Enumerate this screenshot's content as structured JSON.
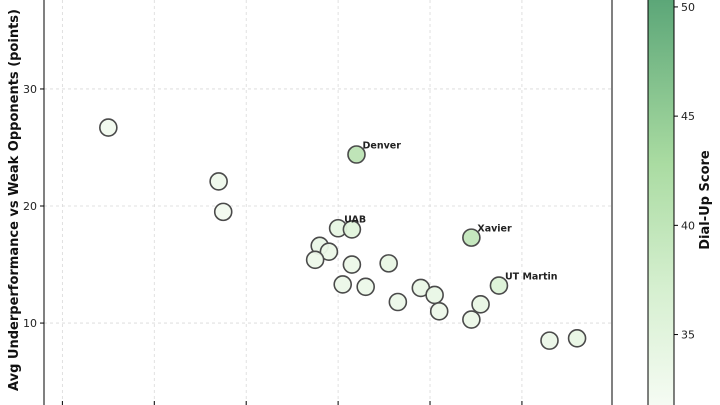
{
  "chart_data": {
    "type": "scatter",
    "title": "",
    "xlabel": "",
    "ylabel": "Avg Underperformance vs Weak Opponents (points)",
    "ylim": [
      3.0,
      37.6
    ],
    "yticks": [
      10,
      20,
      30
    ],
    "grid": true,
    "colorbar": {
      "label": "Dial-Up Score",
      "range": [
        31.5,
        50.5
      ],
      "ticks": [
        35,
        40,
        45,
        50
      ],
      "color_low": "#f7fcf5",
      "color_high": "#5aa577"
    },
    "points": [
      {
        "x": 0.7,
        "y": 26.7,
        "score": 32.5,
        "label": ""
      },
      {
        "x": 1.9,
        "y": 22.1,
        "score": 32.8,
        "label": ""
      },
      {
        "x": 1.95,
        "y": 19.5,
        "score": 32.4,
        "label": ""
      },
      {
        "x": 3.4,
        "y": 24.4,
        "score": 40.5,
        "label": "Denver"
      },
      {
        "x": 3.2,
        "y": 18.1,
        "score": 34.2,
        "label": "UAB"
      },
      {
        "x": 3.35,
        "y": 18.0,
        "score": 35.2,
        "label": ""
      },
      {
        "x": 3.0,
        "y": 16.6,
        "score": 33.6,
        "label": ""
      },
      {
        "x": 3.1,
        "y": 16.1,
        "score": 33.4,
        "label": ""
      },
      {
        "x": 2.95,
        "y": 15.4,
        "score": 33.1,
        "label": ""
      },
      {
        "x": 3.35,
        "y": 15.0,
        "score": 33.4,
        "label": ""
      },
      {
        "x": 3.75,
        "y": 15.1,
        "score": 34.0,
        "label": ""
      },
      {
        "x": 4.65,
        "y": 17.3,
        "score": 39.5,
        "label": "Xavier"
      },
      {
        "x": 3.25,
        "y": 13.3,
        "score": 33.5,
        "label": ""
      },
      {
        "x": 3.5,
        "y": 13.1,
        "score": 33.3,
        "label": ""
      },
      {
        "x": 4.1,
        "y": 13.0,
        "score": 33.6,
        "label": ""
      },
      {
        "x": 4.25,
        "y": 12.4,
        "score": 33.8,
        "label": ""
      },
      {
        "x": 4.95,
        "y": 13.2,
        "score": 36.0,
        "label": "UT Martin"
      },
      {
        "x": 3.85,
        "y": 11.8,
        "score": 33.3,
        "label": ""
      },
      {
        "x": 4.3,
        "y": 11.0,
        "score": 33.2,
        "label": ""
      },
      {
        "x": 4.75,
        "y": 11.6,
        "score": 33.9,
        "label": ""
      },
      {
        "x": 4.65,
        "y": 10.3,
        "score": 33.4,
        "label": ""
      },
      {
        "x": 5.5,
        "y": 8.5,
        "score": 33.5,
        "label": ""
      },
      {
        "x": 5.8,
        "y": 8.7,
        "score": 33.9,
        "label": ""
      }
    ]
  }
}
